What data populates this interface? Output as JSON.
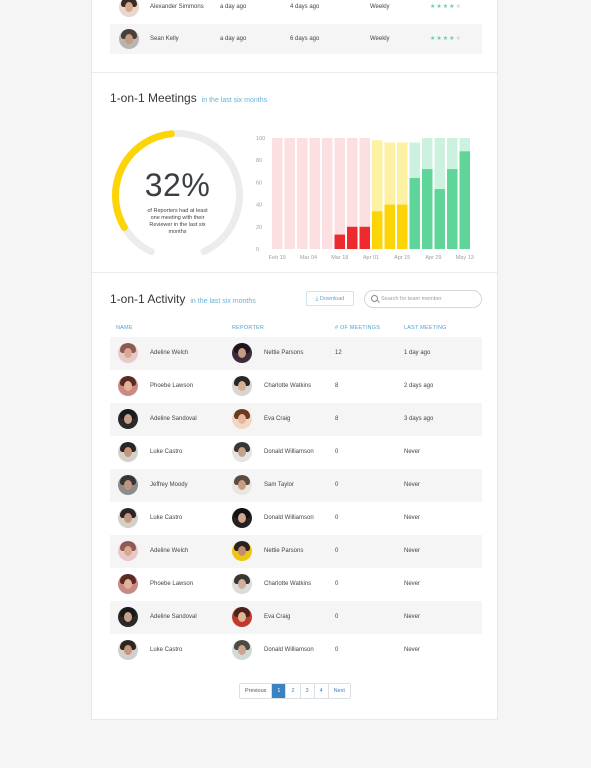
{
  "previous_rows": [
    {
      "name": "Alexander Simmons",
      "created": "a day ago",
      "last": "4 days ago",
      "frequency": "Weekly",
      "rating": 4,
      "stars": "★★★★★"
    },
    {
      "name": "Sean Kelly",
      "created": "a day ago",
      "last": "6 days ago",
      "frequency": "Weekly",
      "rating": 4,
      "stars": "★★★★★"
    }
  ],
  "meetings": {
    "title": "1-on-1 Meetings",
    "subtitle": "in the last six months",
    "percent": "32%",
    "percent_value": 32,
    "caption": "of Reporters had at least one meeting with their Reviewer in the last six months"
  },
  "chart_data": {
    "type": "bar",
    "x_tick_labels": [
      "Feb 19",
      "Mar 04",
      "Mar 18",
      "Apr 01",
      "Apr 15",
      "Apr 29",
      "May 13"
    ],
    "y_ticks": [
      "100",
      "80",
      "60",
      "40",
      "20",
      "0"
    ],
    "ylim": [
      0,
      100
    ],
    "series": [
      {
        "values": [
          0,
          0,
          0,
          0,
          0,
          13,
          20,
          20,
          34,
          40,
          40,
          64,
          72,
          54,
          72,
          88
        ]
      },
      {
        "values": [
          100,
          100,
          100,
          100,
          100,
          100,
          100,
          100,
          98,
          96,
          96,
          96,
          100,
          100,
          100,
          100
        ]
      }
    ],
    "colors": {
      "red": "#ee2a2f",
      "red_light": "#fcdfe0",
      "yellow": "#fdd405",
      "yellow_light": "#fdf1a3",
      "green": "#5fd59a",
      "green_light": "#cdf1df"
    }
  },
  "activity": {
    "title": "1-on-1 Activity",
    "subtitle": "in the last six months",
    "download_label": "Download",
    "search_placeholder": "Search for team member",
    "headers": {
      "name": "NAME",
      "reporter": "REPORTER",
      "meetings": "# OF MEETINGS",
      "last": "LAST MEETING"
    },
    "rows": [
      {
        "name": "Adeline Welch",
        "reporter": "Nettie Parsons",
        "count": "12",
        "last": "1 day ago"
      },
      {
        "name": "Phoebe Lawson",
        "reporter": "Charlotte Watkins",
        "count": "8",
        "last": "2 days ago"
      },
      {
        "name": "Adeline Sandoval",
        "reporter": "Eva Craig",
        "count": "8",
        "last": "3 days ago"
      },
      {
        "name": "Luke Castro",
        "reporter": "Donald Williamson",
        "count": "0",
        "last": "Never"
      },
      {
        "name": "Jeffrey Moody",
        "reporter": "Sam Taylor",
        "count": "0",
        "last": "Never"
      },
      {
        "name": "Luke Castro",
        "reporter": "Donald Williamson",
        "count": "0",
        "last": "Never"
      },
      {
        "name": "Adeline Welch",
        "reporter": "Nettie Parsons",
        "count": "0",
        "last": "Never"
      },
      {
        "name": "Phoebe Lawson",
        "reporter": "Charlotte Watkins",
        "count": "0",
        "last": "Never"
      },
      {
        "name": "Adeline Sandoval",
        "reporter": "Eva Craig",
        "count": "0",
        "last": "Never"
      },
      {
        "name": "Luke Castro",
        "reporter": "Donald Williamson",
        "count": "0",
        "last": "Never"
      }
    ]
  },
  "pagination": {
    "previous": "Previous",
    "pages": [
      "1",
      "2",
      "3",
      "4"
    ],
    "active": "1",
    "next": "Next"
  }
}
